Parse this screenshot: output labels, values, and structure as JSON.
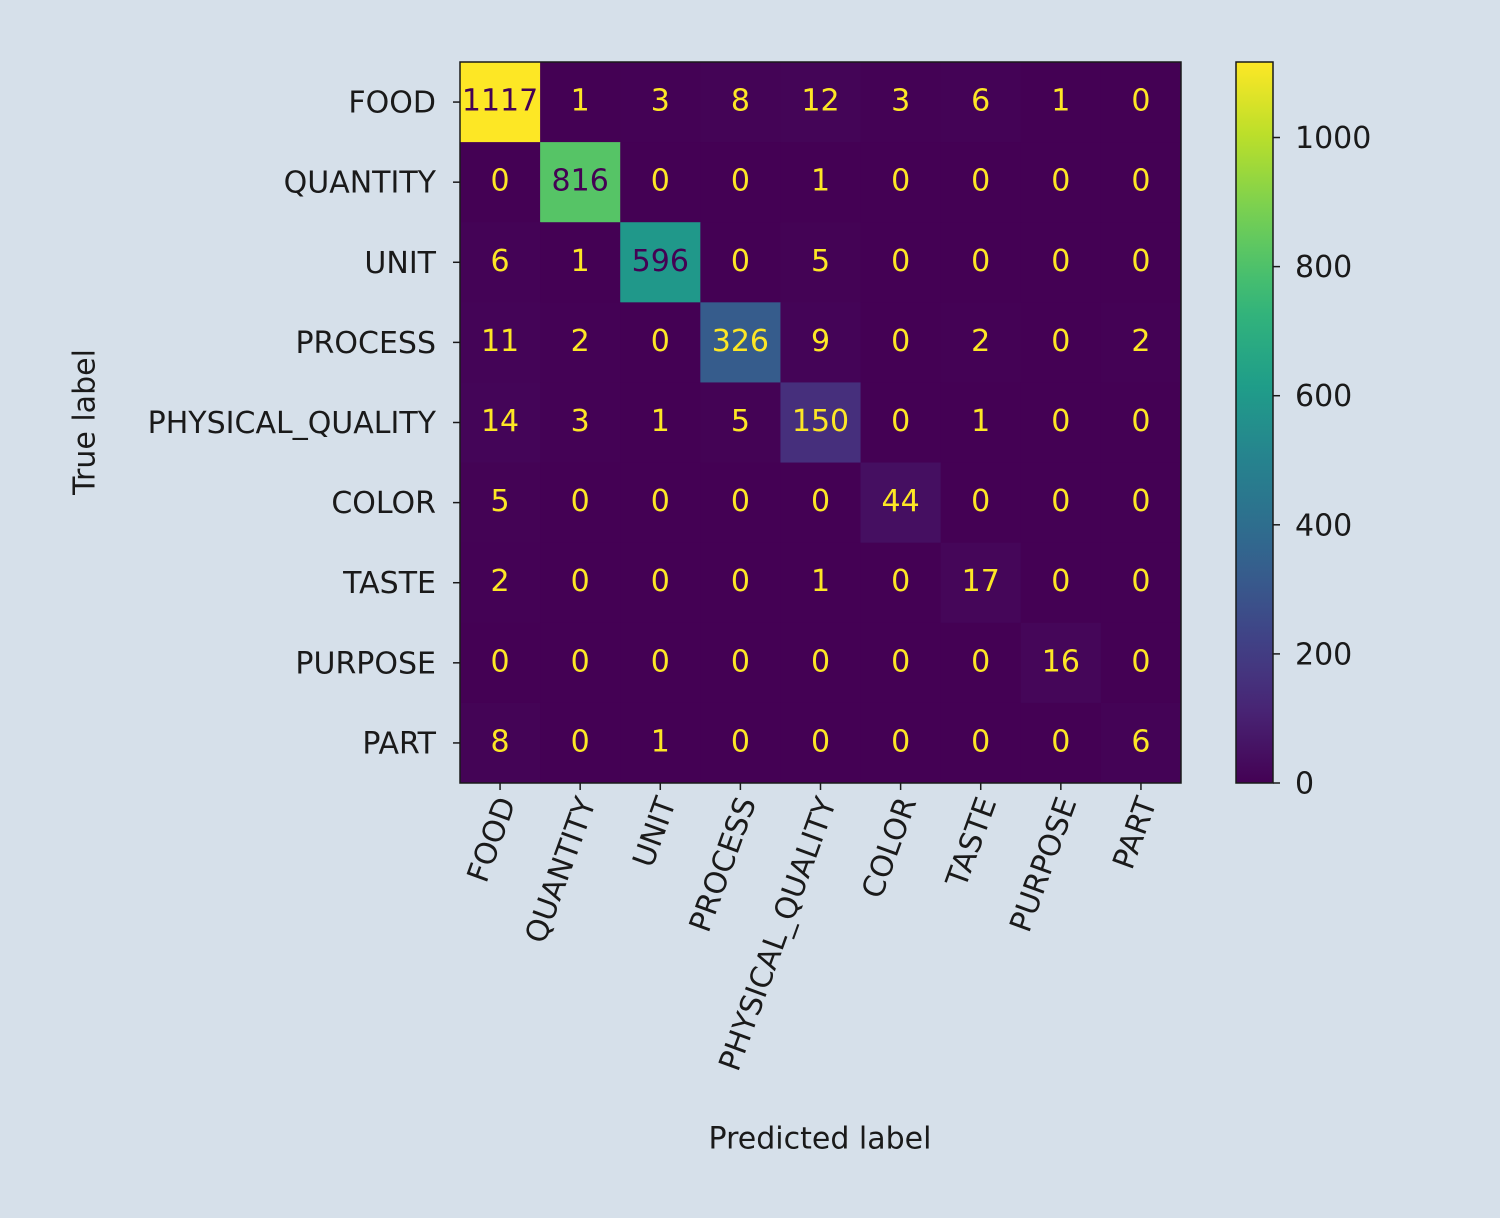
{
  "chart_data": {
    "type": "heatmap",
    "x_label": "Predicted label",
    "y_label": "True label",
    "x_categories": [
      "FOOD",
      "QUANTITY",
      "UNIT",
      "PROCESS",
      "PHYSICAL_QUALITY",
      "COLOR",
      "TASTE",
      "PURPOSE",
      "PART"
    ],
    "y_categories": [
      "FOOD",
      "QUANTITY",
      "UNIT",
      "PROCESS",
      "PHYSICAL_QUALITY",
      "COLOR",
      "TASTE",
      "PURPOSE",
      "PART"
    ],
    "values": [
      [
        1117,
        1,
        3,
        8,
        12,
        3,
        6,
        1,
        0
      ],
      [
        0,
        816,
        0,
        0,
        1,
        0,
        0,
        0,
        0
      ],
      [
        6,
        1,
        596,
        0,
        5,
        0,
        0,
        0,
        0
      ],
      [
        11,
        2,
        0,
        326,
        9,
        0,
        2,
        0,
        2
      ],
      [
        14,
        3,
        1,
        5,
        150,
        0,
        1,
        0,
        0
      ],
      [
        5,
        0,
        0,
        0,
        0,
        44,
        0,
        0,
        0
      ],
      [
        2,
        0,
        0,
        0,
        1,
        0,
        17,
        0,
        0
      ],
      [
        0,
        0,
        0,
        0,
        0,
        0,
        0,
        16,
        0
      ],
      [
        8,
        0,
        1,
        0,
        0,
        0,
        0,
        0,
        6
      ]
    ],
    "colormap": "viridis",
    "clim": [
      0,
      1117
    ],
    "colorbar_ticks": [
      0,
      200,
      400,
      600,
      800,
      1000
    ]
  }
}
